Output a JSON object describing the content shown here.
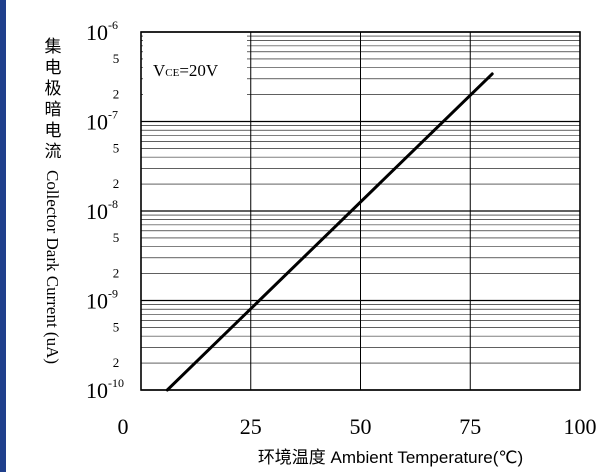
{
  "chart_data": {
    "type": "line",
    "title": "",
    "annotation": {
      "prefix": "V",
      "subscript": "CE",
      "suffix": "=20V"
    },
    "xlabel": "环境温度 Ambient Temperature(℃)",
    "ylabel": "集电极暗电流 Collector Dark Current (uA)",
    "ylabel_cjk": "集电极暗电流",
    "ylabel_en": "Collector Dark Current (uA)",
    "xlim": [
      0,
      100
    ],
    "ylim": [
      1e-10,
      1e-06
    ],
    "y_scale": "log",
    "grid": true,
    "x_ticks": [
      {
        "value": 0,
        "label": "0"
      },
      {
        "value": 25,
        "label": "25"
      },
      {
        "value": 50,
        "label": "50"
      },
      {
        "value": 75,
        "label": "75"
      },
      {
        "value": 100,
        "label": "100"
      }
    ],
    "y_major_ticks": [
      {
        "value": 1e-06,
        "base": "10",
        "exp": "-6"
      },
      {
        "value": 1e-07,
        "base": "10",
        "exp": "-7"
      },
      {
        "value": 1e-08,
        "base": "10",
        "exp": "-8"
      },
      {
        "value": 1e-09,
        "base": "10",
        "exp": "-9"
      },
      {
        "value": 1e-10,
        "base": "10",
        "exp": "-10"
      }
    ],
    "y_minor_labels": [
      {
        "value": 5e-07,
        "label": "5"
      },
      {
        "value": 2e-07,
        "label": "2"
      },
      {
        "value": 5e-08,
        "label": "5"
      },
      {
        "value": 2e-08,
        "label": "2"
      },
      {
        "value": 5e-09,
        "label": "5"
      },
      {
        "value": 2e-09,
        "label": "2"
      },
      {
        "value": 5e-10,
        "label": "5"
      },
      {
        "value": 2e-10,
        "label": "2"
      }
    ],
    "series": [
      {
        "points": [
          {
            "x": 6,
            "y": 1e-10
          },
          {
            "x": 80,
            "y": 3.4e-07
          }
        ]
      }
    ],
    "colors": {
      "line": "#000000",
      "grid": "#000000",
      "accent_bar": "#1f3f8c"
    }
  }
}
